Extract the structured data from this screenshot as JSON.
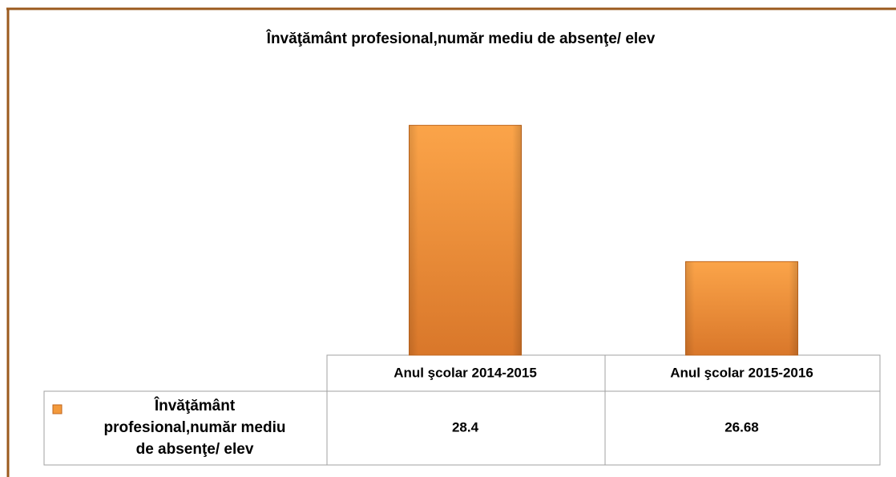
{
  "chart_data": {
    "type": "bar",
    "title": "Învăţământ profesional,număr mediu de absenţe/ elev",
    "categories": [
      "Anul şcolar 2014-2015",
      "Anul şcolar 2015-2016"
    ],
    "series": [
      {
        "name": "Învăţământ profesional,număr mediu de absenţe/ elev",
        "color": "#f39a3c",
        "values": [
          28.4,
          26.68
        ]
      }
    ],
    "ylim": [
      25.5,
      29
    ],
    "data_table": true
  }
}
